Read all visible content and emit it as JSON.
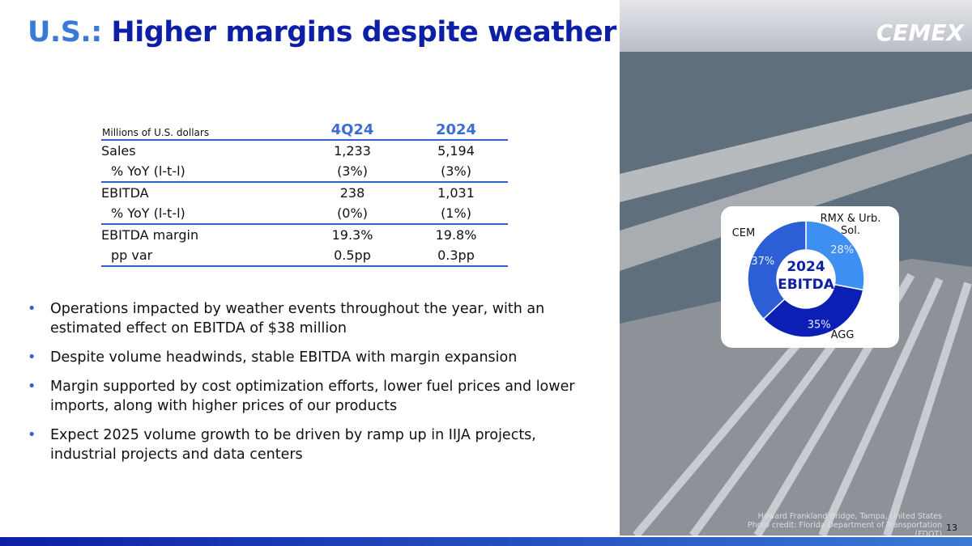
{
  "header": {
    "title_prefix": "U.S.:",
    "title": "Higher margins despite weather",
    "logo": "CEMEX"
  },
  "table": {
    "caption": "Millions of U.S. dollars",
    "columns": [
      "4Q24",
      "2024"
    ],
    "rows": [
      [
        "Sales",
        "1,233",
        "5,194"
      ],
      [
        "% YoY (l-t-l)",
        "(3%)",
        "(3%)"
      ],
      [
        "EBITDA",
        "238",
        "1,031"
      ],
      [
        "% YoY (l-t-l)",
        "(0%)",
        "(1%)"
      ],
      [
        "EBITDA margin",
        "19.3%",
        "19.8%"
      ],
      [
        "pp var",
        "0.5pp",
        "0.3pp"
      ]
    ]
  },
  "bullets": [
    "Operations impacted by weather events throughout the year, with an estimated effect on EBITDA of $38 million",
    "Despite volume headwinds, stable EBITDA with margin expansion",
    "Margin supported by cost optimization efforts, lower fuel prices and lower imports, along with higher prices of our products",
    "Expect 2025 volume growth to be driven by ramp up in IIJA projects, industrial projects and data centers"
  ],
  "chart_data": {
    "type": "donut",
    "title": "2024 EBITDA",
    "categories": [
      "RMX & Urb. Sol.",
      "AGG",
      "CEM"
    ],
    "values": [
      28,
      35,
      37
    ],
    "value_labels": [
      "28%",
      "35%",
      "37%"
    ],
    "colors": [
      "#3d8ff2",
      "#0b1fb4",
      "#2c5fd6"
    ]
  },
  "footer": {
    "photo_caption": "Howard Frankland Bridge, Tampa, United States",
    "photo_credit": "Photo credit: Florida Department of Transportation (FDOT)",
    "page_number": "13"
  }
}
